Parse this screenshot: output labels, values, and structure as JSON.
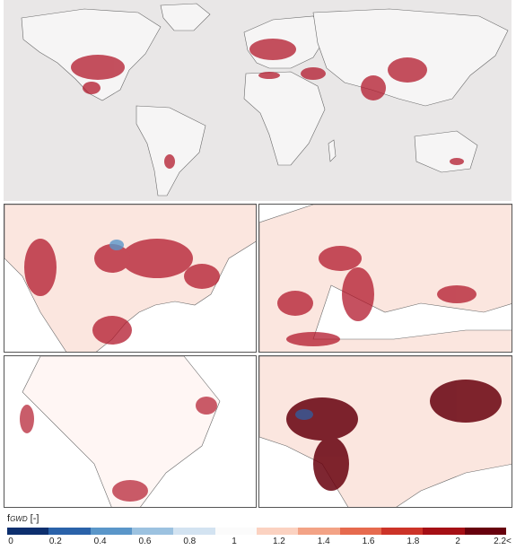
{
  "legend": {
    "symbol": "f",
    "subscript": "GWD",
    "unit": " [-]",
    "ticks": [
      "0",
      "0.2",
      "0.4",
      "0.6",
      "0.8",
      "1",
      "1.2",
      "1.4",
      "1.6",
      "1.8",
      "2",
      "2.2<"
    ],
    "colors": [
      "#0d2f6e",
      "#2a62a9",
      "#5a96c9",
      "#9cc2e0",
      "#d3e3f1",
      "#fbfbfb",
      "#fbd2c1",
      "#f3a386",
      "#e66a4e",
      "#cc3328",
      "#a50f15",
      "#67000d"
    ]
  },
  "panels": {
    "world": {
      "name": "global map"
    },
    "north_america": {
      "name": "north america map"
    },
    "europe": {
      "name": "europe map"
    },
    "south_america": {
      "name": "south america map"
    },
    "south_asia": {
      "name": "south and east asia map"
    }
  },
  "colors": {
    "ocean_world": "#e9e7e7",
    "land_world": "#f6f5f5",
    "border": "#6a6a6a",
    "hotspot": "#b2182b"
  }
}
